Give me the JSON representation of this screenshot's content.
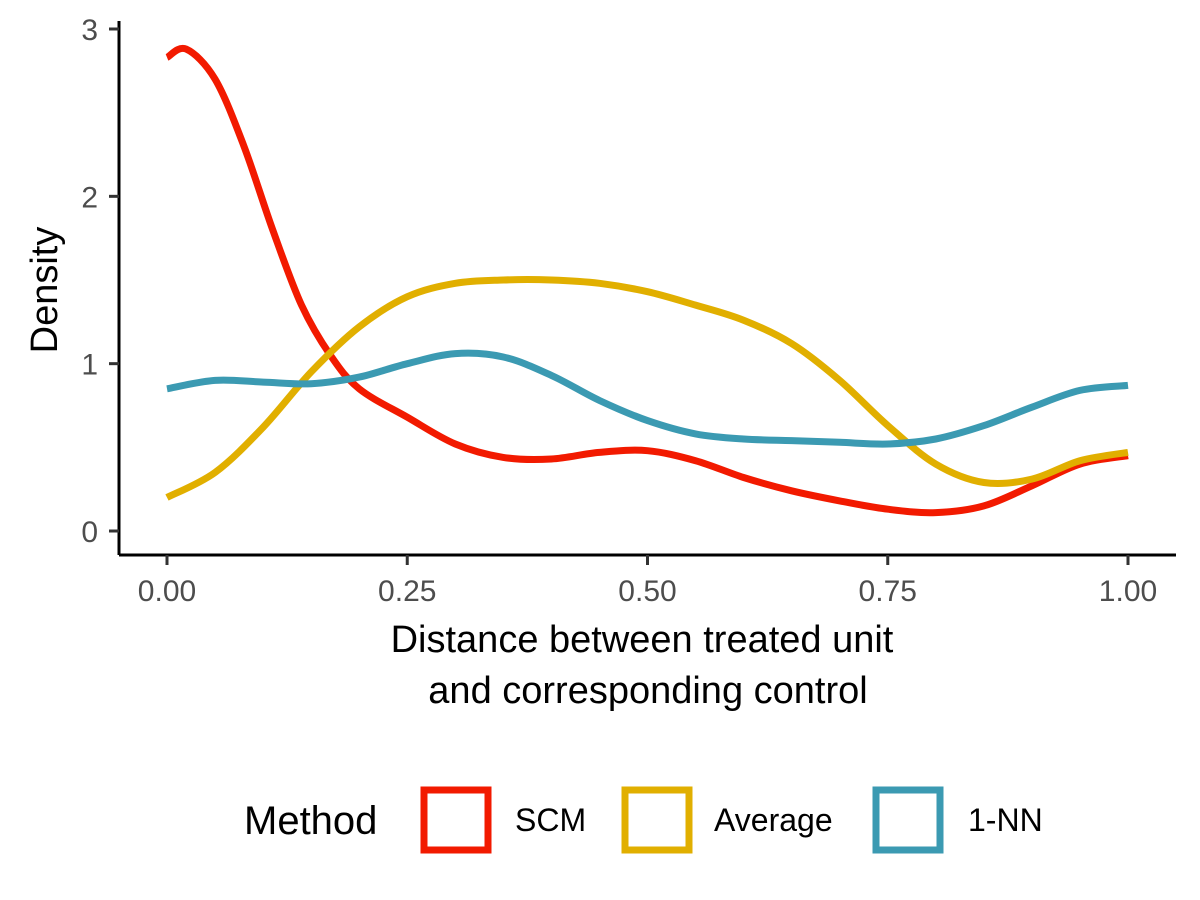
{
  "chart_data": {
    "type": "line",
    "title": "",
    "xlabel_lines": [
      "Distance between treated unit",
      "and corresponding control"
    ],
    "ylabel": "Density",
    "xlim": [
      0,
      1
    ],
    "ylim": [
      0,
      3
    ],
    "x_ticks": [
      "0.00",
      "0.25",
      "0.50",
      "0.75",
      "1.00"
    ],
    "y_ticks": [
      "0",
      "1",
      "2",
      "3"
    ],
    "grid": false,
    "legend": {
      "title": "Method",
      "position": "bottom"
    },
    "series": [
      {
        "name": "SCM",
        "color": "#f21a00",
        "points": [
          [
            0.0,
            2.83
          ],
          [
            0.02,
            2.88
          ],
          [
            0.05,
            2.7
          ],
          [
            0.08,
            2.3
          ],
          [
            0.11,
            1.8
          ],
          [
            0.14,
            1.35
          ],
          [
            0.17,
            1.05
          ],
          [
            0.2,
            0.85
          ],
          [
            0.25,
            0.68
          ],
          [
            0.3,
            0.52
          ],
          [
            0.35,
            0.44
          ],
          [
            0.4,
            0.43
          ],
          [
            0.45,
            0.47
          ],
          [
            0.5,
            0.48
          ],
          [
            0.55,
            0.42
          ],
          [
            0.6,
            0.32
          ],
          [
            0.65,
            0.24
          ],
          [
            0.7,
            0.18
          ],
          [
            0.75,
            0.13
          ],
          [
            0.8,
            0.11
          ],
          [
            0.85,
            0.15
          ],
          [
            0.9,
            0.27
          ],
          [
            0.95,
            0.4
          ],
          [
            1.0,
            0.45
          ]
        ]
      },
      {
        "name": "Average",
        "color": "#e1af00",
        "points": [
          [
            0.0,
            0.2
          ],
          [
            0.05,
            0.35
          ],
          [
            0.1,
            0.62
          ],
          [
            0.15,
            0.95
          ],
          [
            0.2,
            1.22
          ],
          [
            0.25,
            1.4
          ],
          [
            0.3,
            1.48
          ],
          [
            0.35,
            1.5
          ],
          [
            0.4,
            1.5
          ],
          [
            0.45,
            1.48
          ],
          [
            0.5,
            1.43
          ],
          [
            0.55,
            1.35
          ],
          [
            0.6,
            1.26
          ],
          [
            0.65,
            1.12
          ],
          [
            0.7,
            0.9
          ],
          [
            0.75,
            0.63
          ],
          [
            0.8,
            0.4
          ],
          [
            0.85,
            0.29
          ],
          [
            0.9,
            0.31
          ],
          [
            0.95,
            0.42
          ],
          [
            1.0,
            0.47
          ]
        ]
      },
      {
        "name": "1-NN",
        "color": "#3b9ab2",
        "points": [
          [
            0.0,
            0.85
          ],
          [
            0.05,
            0.9
          ],
          [
            0.1,
            0.89
          ],
          [
            0.15,
            0.88
          ],
          [
            0.2,
            0.92
          ],
          [
            0.25,
            1.0
          ],
          [
            0.3,
            1.06
          ],
          [
            0.35,
            1.04
          ],
          [
            0.4,
            0.93
          ],
          [
            0.45,
            0.78
          ],
          [
            0.5,
            0.66
          ],
          [
            0.55,
            0.58
          ],
          [
            0.6,
            0.55
          ],
          [
            0.65,
            0.54
          ],
          [
            0.7,
            0.53
          ],
          [
            0.75,
            0.52
          ],
          [
            0.8,
            0.55
          ],
          [
            0.85,
            0.63
          ],
          [
            0.9,
            0.74
          ],
          [
            0.95,
            0.84
          ],
          [
            1.0,
            0.87
          ]
        ]
      }
    ]
  }
}
